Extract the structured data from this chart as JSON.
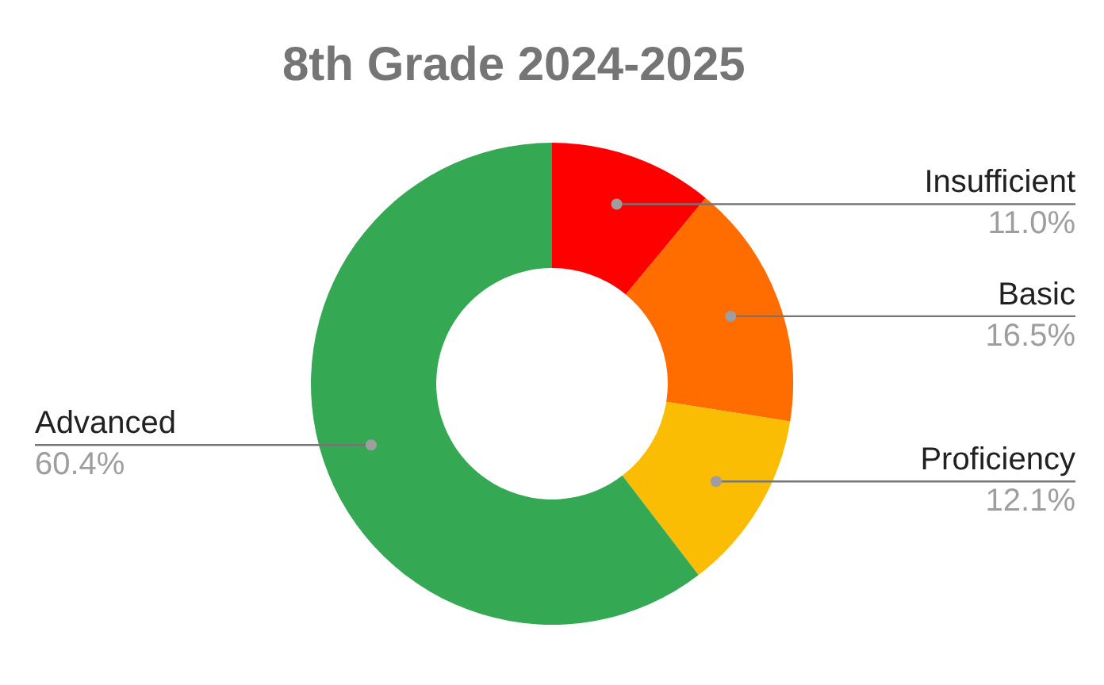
{
  "chart_data": {
    "type": "donut",
    "title": "8th Grade 2024-2025",
    "categories": [
      "Insufficient",
      "Basic",
      "Proficiency",
      "Advanced"
    ],
    "values": [
      11.0,
      16.5,
      12.1,
      60.4
    ],
    "value_labels": [
      "11.0%",
      "16.5%",
      "12.1%",
      "60.4%"
    ],
    "colors": [
      "#ff0000",
      "#ff6d01",
      "#fbbc04",
      "#34a853"
    ],
    "legend": false
  }
}
